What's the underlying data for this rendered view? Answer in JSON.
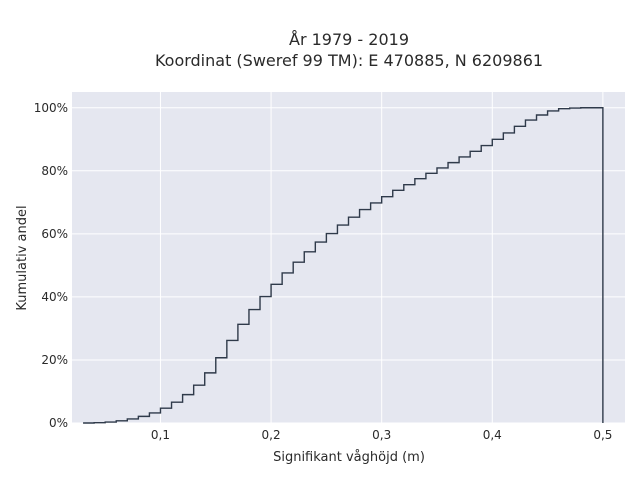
{
  "chart_data": {
    "type": "line",
    "subtype": "ecdf-step",
    "title_line1": "År 1979 - 2019",
    "title_line2": "Koordinat (Sweref 99 TM): E 470885, N 6209861",
    "xlabel": "Signifikant våghöjd (m)",
    "ylabel": "Kumulativ andel",
    "xlim": [
      0.02,
      0.52
    ],
    "ylim": [
      0,
      1.05
    ],
    "grid": true,
    "legend": "none",
    "x_ticks": [
      {
        "value": 0.1,
        "label": "0,1"
      },
      {
        "value": 0.2,
        "label": "0,2"
      },
      {
        "value": 0.3,
        "label": "0,3"
      },
      {
        "value": 0.4,
        "label": "0,4"
      },
      {
        "value": 0.5,
        "label": "0,5"
      }
    ],
    "y_ticks": [
      {
        "value": 0,
        "label": "0%"
      },
      {
        "value": 0.2,
        "label": "20%"
      },
      {
        "value": 0.4,
        "label": "40%"
      },
      {
        "value": 0.6,
        "label": "60%"
      },
      {
        "value": 0.8,
        "label": "80%"
      },
      {
        "value": 1.0,
        "label": "100%"
      }
    ],
    "series": [
      {
        "line_color": "#2f3a4a",
        "x": [
          0.03,
          0.04,
          0.05,
          0.06,
          0.07,
          0.08,
          0.09,
          0.1,
          0.11,
          0.12,
          0.13,
          0.14,
          0.15,
          0.16,
          0.17,
          0.18,
          0.19,
          0.2,
          0.21,
          0.22,
          0.23,
          0.24,
          0.25,
          0.26,
          0.27,
          0.28,
          0.29,
          0.3,
          0.31,
          0.32,
          0.33,
          0.34,
          0.35,
          0.36,
          0.37,
          0.38,
          0.39,
          0.4,
          0.41,
          0.42,
          0.43,
          0.44,
          0.45,
          0.46,
          0.47,
          0.48,
          0.49,
          0.5
        ],
        "y": [
          0.0,
          0.001,
          0.003,
          0.007,
          0.013,
          0.021,
          0.032,
          0.047,
          0.066,
          0.09,
          0.12,
          0.159,
          0.207,
          0.262,
          0.313,
          0.36,
          0.401,
          0.44,
          0.476,
          0.51,
          0.543,
          0.574,
          0.601,
          0.628,
          0.653,
          0.677,
          0.698,
          0.718,
          0.738,
          0.756,
          0.775,
          0.792,
          0.809,
          0.826,
          0.844,
          0.862,
          0.88,
          0.9,
          0.92,
          0.941,
          0.961,
          0.977,
          0.99,
          0.997,
          0.999,
          1.0,
          1.0,
          0.0
        ]
      }
    ]
  },
  "colors": {
    "plot_background": "#e5e7f0",
    "grid": "#ffffff",
    "line": "#2f3a4a"
  }
}
